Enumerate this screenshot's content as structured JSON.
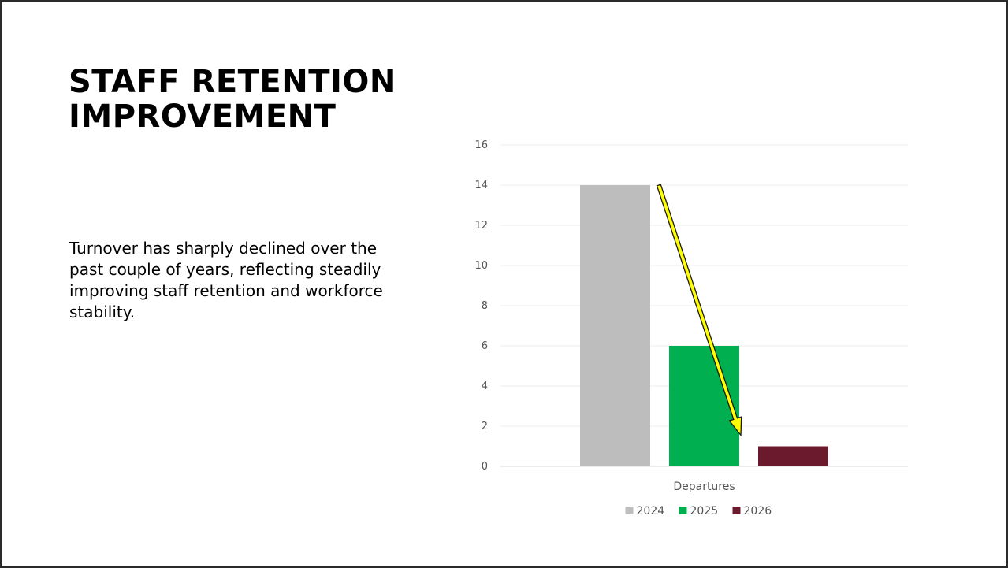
{
  "slide": {
    "title": "STAFF RETENTION IMPROVEMENT",
    "body": "Turnover has sharply declined over the past couple of years, reflecting steadily improving staff retention and workforce stability."
  },
  "chart_data": {
    "type": "bar",
    "categories": [
      "Departures"
    ],
    "series": [
      {
        "name": "2024",
        "values": [
          14
        ],
        "color": "#bdbdbd"
      },
      {
        "name": "2025",
        "values": [
          6
        ],
        "color": "#00b050"
      },
      {
        "name": "2026",
        "values": [
          1
        ],
        "color": "#6b1a2e"
      }
    ],
    "ylim": [
      0,
      16
    ],
    "yticks": [
      "0",
      "2",
      "4",
      "6",
      "8",
      "10",
      "12",
      "14",
      "16"
    ],
    "grid": true,
    "legend_position": "bottom",
    "annotation": {
      "type": "arrow",
      "color": "#ffff00",
      "from_value": 14,
      "to_value": 1
    }
  }
}
